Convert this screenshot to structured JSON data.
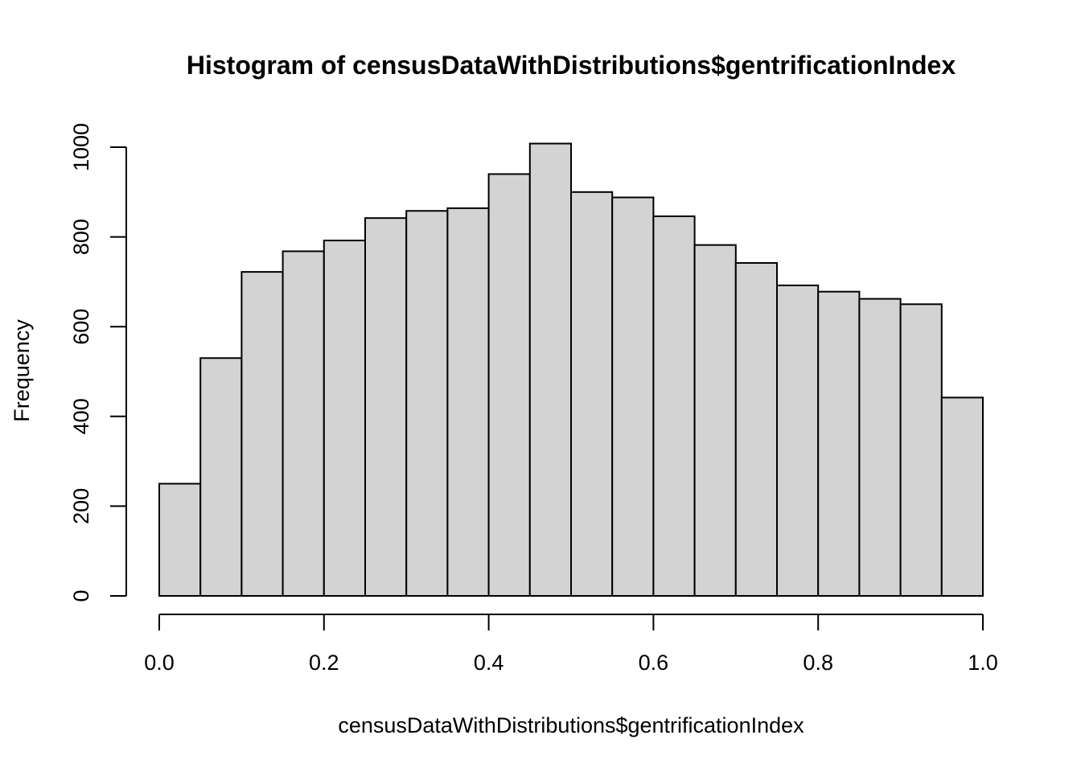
{
  "chart_data": {
    "type": "bar",
    "title": "Histogram of censusDataWithDistributions$gentrificationIndex",
    "xlabel": "censusDataWithDistributions$gentrificationIndex",
    "ylabel": "Frequency",
    "bin_edges": [
      0.0,
      0.05,
      0.1,
      0.15,
      0.2,
      0.25,
      0.3,
      0.35,
      0.4,
      0.45,
      0.5,
      0.55,
      0.6,
      0.65,
      0.7,
      0.75,
      0.8,
      0.85,
      0.9,
      0.95,
      1.0
    ],
    "values": [
      250,
      530,
      722,
      768,
      792,
      842,
      858,
      864,
      940,
      1008,
      900,
      888,
      846,
      782,
      742,
      692,
      678,
      662,
      650,
      442
    ],
    "xlim": [
      0,
      1
    ],
    "ylim": [
      0,
      1000
    ],
    "x_ticks": [
      0.0,
      0.2,
      0.4,
      0.6,
      0.8,
      1.0
    ],
    "x_tick_labels": [
      "0.0",
      "0.2",
      "0.4",
      "0.6",
      "0.8",
      "1.0"
    ],
    "y_ticks": [
      0,
      200,
      400,
      600,
      800,
      1000
    ],
    "y_tick_labels": [
      "0",
      "200",
      "400",
      "600",
      "800",
      "1000"
    ],
    "bar_fill": "#d3d3d3",
    "bar_stroke": "#000000",
    "grid": false,
    "legend": "none"
  }
}
